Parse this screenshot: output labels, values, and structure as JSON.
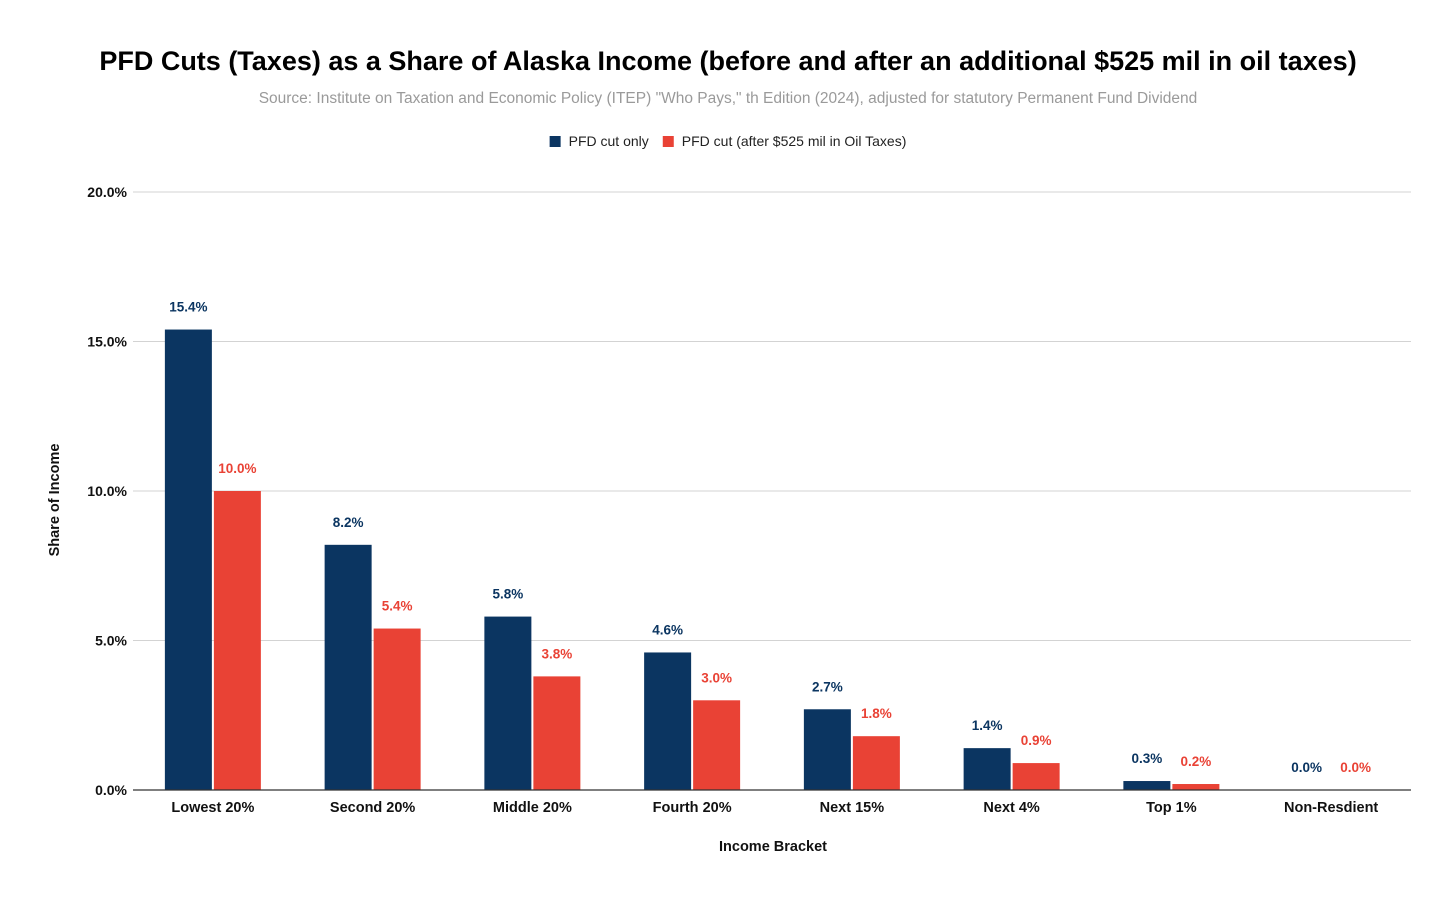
{
  "chart_data": {
    "type": "bar",
    "title": "PFD Cuts (Taxes) as a Share of Alaska Income (before and after an additional $525 mil in oil taxes)",
    "subtitle": "Source: Institute on Taxation and Economic Policy (ITEP) \"Who Pays,\" th Edition (2024), adjusted for statutory Permanent Fund Dividend",
    "xlabel": "Income Bracket",
    "ylabel": "Share of Income",
    "ylim": [
      0,
      20
    ],
    "yticks": [
      0,
      5,
      10,
      15,
      20
    ],
    "ytick_labels": [
      "0.0%",
      "5.0%",
      "10.0%",
      "15.0%",
      "20.0%"
    ],
    "grid": true,
    "legend_position": "top-center",
    "categories": [
      "Lowest 20%",
      "Second 20%",
      "Middle 20%",
      "Fourth 20%",
      "Next 15%",
      "Next 4%",
      "Top 1%",
      "Non-Resdient"
    ],
    "series": [
      {
        "name": "PFD cut only",
        "color": "#0b3561",
        "values": [
          15.4,
          8.2,
          5.8,
          4.6,
          2.7,
          1.4,
          0.3,
          0.0
        ],
        "labels": [
          "15.4%",
          "8.2%",
          "5.8%",
          "4.6%",
          "2.7%",
          "1.4%",
          "0.3%",
          "0.0%"
        ]
      },
      {
        "name": "PFD cut (after $525 mil in Oil Taxes)",
        "color": "#e94235",
        "values": [
          10.0,
          5.4,
          3.8,
          3.0,
          1.8,
          0.9,
          0.2,
          0.0
        ],
        "labels": [
          "10.0%",
          "5.4%",
          "3.8%",
          "3.0%",
          "1.8%",
          "0.9%",
          "0.2%",
          "0.0%"
        ]
      }
    ]
  }
}
